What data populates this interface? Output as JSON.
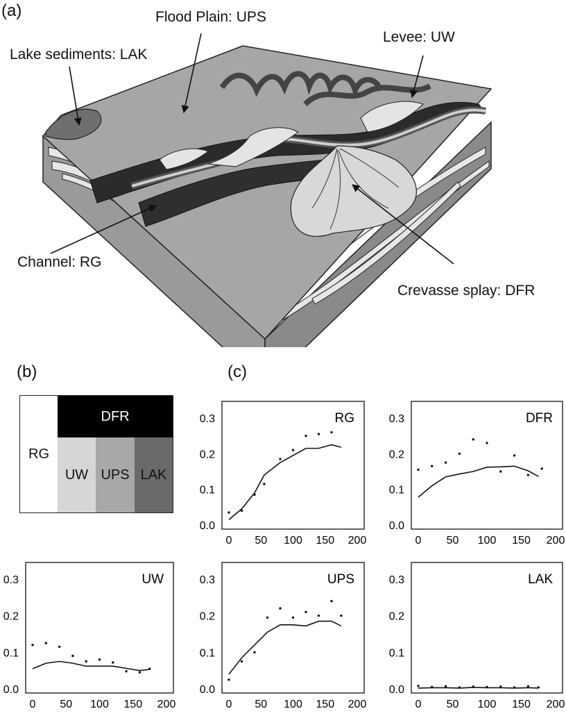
{
  "panel_labels": {
    "a": "(a)",
    "b": "(b)",
    "c": "(c)"
  },
  "callouts": {
    "flood_plain": "Flood Plain: UPS",
    "levee": "Levee: UW",
    "lake": "Lake sediments: LAK",
    "channel": "Channel: RG",
    "crevasse": "Crevasse splay: DFR"
  },
  "legend": {
    "rg": "RG",
    "dfr": "DFR",
    "uw": "UW",
    "ups": "UPS",
    "lak": "LAK",
    "colors": {
      "rg": "#ffffff",
      "dfr": "#000000",
      "uw": "#d6d6d6",
      "ups": "#a8a8a8",
      "lak": "#6a6a6a"
    }
  },
  "chart_data": [
    {
      "type": "line",
      "title": "RG",
      "xlim": [
        0,
        200
      ],
      "ylim": [
        0,
        0.3
      ],
      "xticks": [
        "0",
        "50",
        "100",
        "150",
        "200"
      ],
      "yticks": [
        "0.0",
        "0.1",
        "0.2",
        "0.3"
      ],
      "series": [
        {
          "kind": "line",
          "x": [
            0,
            20,
            40,
            55,
            80,
            100,
            120,
            140,
            160,
            175
          ],
          "y": [
            0.015,
            0.045,
            0.09,
            0.14,
            0.175,
            0.195,
            0.215,
            0.215,
            0.225,
            0.218
          ]
        },
        {
          "kind": "points",
          "x": [
            0,
            20,
            40,
            55,
            80,
            100,
            120,
            140,
            160
          ],
          "y": [
            0.035,
            0.04,
            0.085,
            0.115,
            0.185,
            0.21,
            0.25,
            0.255,
            0.26
          ]
        }
      ]
    },
    {
      "type": "line",
      "title": "DFR",
      "xlim": [
        0,
        200
      ],
      "ylim": [
        0,
        0.3
      ],
      "xticks": [
        "0",
        "50",
        "100",
        "150",
        "200"
      ],
      "yticks": [
        "0.0",
        "0.1",
        "0.2",
        "0.3"
      ],
      "series": [
        {
          "kind": "line",
          "x": [
            0,
            20,
            40,
            60,
            80,
            100,
            120,
            140,
            160,
            175
          ],
          "y": [
            0.078,
            0.11,
            0.135,
            0.143,
            0.15,
            0.162,
            0.163,
            0.165,
            0.152,
            0.136
          ]
        },
        {
          "kind": "points",
          "x": [
            0,
            20,
            40,
            60,
            80,
            100,
            120,
            140,
            160,
            180
          ],
          "y": [
            0.155,
            0.165,
            0.175,
            0.2,
            0.24,
            0.23,
            0.15,
            0.195,
            0.14,
            0.158
          ]
        }
      ]
    },
    {
      "type": "line",
      "title": "UW",
      "xlim": [
        0,
        200
      ],
      "ylim": [
        0,
        0.3
      ],
      "xticks": [
        "0",
        "50",
        "100",
        "150",
        "200"
      ],
      "yticks": [
        "0.0",
        "0.1",
        "0.2",
        "0.3"
      ],
      "series": [
        {
          "kind": "line",
          "x": [
            0,
            20,
            40,
            60,
            80,
            100,
            120,
            140,
            160,
            175
          ],
          "y": [
            0.055,
            0.07,
            0.075,
            0.07,
            0.062,
            0.062,
            0.062,
            0.056,
            0.05,
            0.053
          ]
        },
        {
          "kind": "points",
          "x": [
            0,
            20,
            40,
            60,
            80,
            100,
            120,
            140,
            160,
            175
          ],
          "y": [
            0.12,
            0.125,
            0.115,
            0.09,
            0.075,
            0.08,
            0.072,
            0.048,
            0.045,
            0.055
          ]
        }
      ]
    },
    {
      "type": "line",
      "title": "UPS",
      "xlim": [
        0,
        200
      ],
      "ylim": [
        0,
        0.3
      ],
      "xticks": [
        "0",
        "50",
        "100",
        "150",
        "200"
      ],
      "yticks": [
        "0.0",
        "0.1",
        "0.2",
        "0.3"
      ],
      "series": [
        {
          "kind": "line",
          "x": [
            0,
            20,
            40,
            60,
            80,
            100,
            120,
            140,
            160,
            175
          ],
          "y": [
            0.04,
            0.085,
            0.12,
            0.155,
            0.175,
            0.175,
            0.172,
            0.185,
            0.185,
            0.172
          ]
        },
        {
          "kind": "points",
          "x": [
            0,
            20,
            40,
            60,
            80,
            100,
            120,
            140,
            160,
            175
          ],
          "y": [
            0.025,
            0.075,
            0.1,
            0.195,
            0.22,
            0.195,
            0.21,
            0.2,
            0.24,
            0.2
          ]
        }
      ]
    },
    {
      "type": "line",
      "title": "LAK",
      "xlim": [
        0,
        200
      ],
      "ylim": [
        0,
        0.3
      ],
      "xticks": [
        "0",
        "50",
        "100",
        "150",
        "200"
      ],
      "yticks": [
        "0.0",
        "0.1",
        "0.2",
        "0.3"
      ],
      "series": [
        {
          "kind": "line",
          "x": [
            0,
            20,
            40,
            60,
            80,
            100,
            120,
            140,
            160,
            175
          ],
          "y": [
            0.002,
            0.003,
            0.003,
            0.002,
            0.004,
            0.003,
            0.003,
            0.002,
            0.003,
            0.002
          ]
        },
        {
          "kind": "points",
          "x": [
            0,
            20,
            40,
            60,
            80,
            100,
            120,
            140,
            160,
            175
          ],
          "y": [
            0.008,
            0.005,
            0.007,
            0.004,
            0.006,
            0.005,
            0.006,
            0.004,
            0.007,
            0.004
          ]
        }
      ]
    }
  ]
}
